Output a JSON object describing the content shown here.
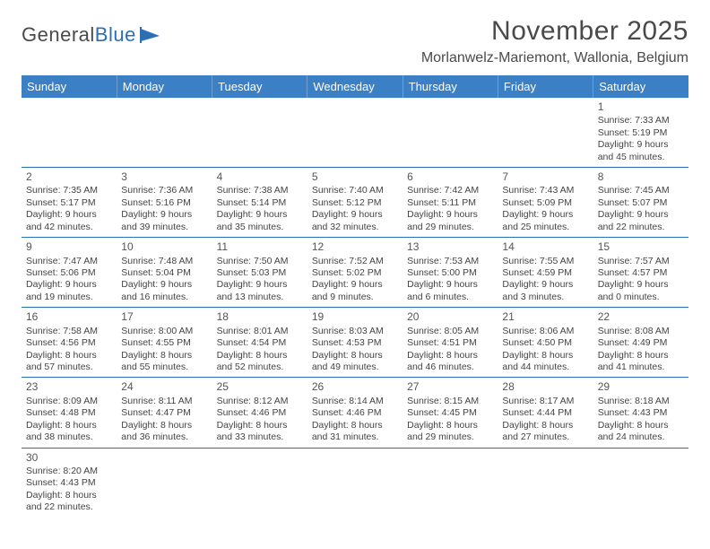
{
  "logo": {
    "word1": "General",
    "word2": "Blue"
  },
  "title": "November 2025",
  "location": "Morlanwelz-Mariemont, Wallonia, Belgium",
  "colors": {
    "header_bg": "#3b7fc4",
    "header_text": "#ffffff",
    "border": "#2d6fb5",
    "text": "#444444",
    "title": "#4a4a4a",
    "logo_accent": "#2d6fb5"
  },
  "day_headers": [
    "Sunday",
    "Monday",
    "Tuesday",
    "Wednesday",
    "Thursday",
    "Friday",
    "Saturday"
  ],
  "weeks": [
    [
      null,
      null,
      null,
      null,
      null,
      null,
      {
        "n": "1",
        "sr": "Sunrise: 7:33 AM",
        "ss": "Sunset: 5:19 PM",
        "dl": "Daylight: 9 hours and 45 minutes."
      }
    ],
    [
      {
        "n": "2",
        "sr": "Sunrise: 7:35 AM",
        "ss": "Sunset: 5:17 PM",
        "dl": "Daylight: 9 hours and 42 minutes."
      },
      {
        "n": "3",
        "sr": "Sunrise: 7:36 AM",
        "ss": "Sunset: 5:16 PM",
        "dl": "Daylight: 9 hours and 39 minutes."
      },
      {
        "n": "4",
        "sr": "Sunrise: 7:38 AM",
        "ss": "Sunset: 5:14 PM",
        "dl": "Daylight: 9 hours and 35 minutes."
      },
      {
        "n": "5",
        "sr": "Sunrise: 7:40 AM",
        "ss": "Sunset: 5:12 PM",
        "dl": "Daylight: 9 hours and 32 minutes."
      },
      {
        "n": "6",
        "sr": "Sunrise: 7:42 AM",
        "ss": "Sunset: 5:11 PM",
        "dl": "Daylight: 9 hours and 29 minutes."
      },
      {
        "n": "7",
        "sr": "Sunrise: 7:43 AM",
        "ss": "Sunset: 5:09 PM",
        "dl": "Daylight: 9 hours and 25 minutes."
      },
      {
        "n": "8",
        "sr": "Sunrise: 7:45 AM",
        "ss": "Sunset: 5:07 PM",
        "dl": "Daylight: 9 hours and 22 minutes."
      }
    ],
    [
      {
        "n": "9",
        "sr": "Sunrise: 7:47 AM",
        "ss": "Sunset: 5:06 PM",
        "dl": "Daylight: 9 hours and 19 minutes."
      },
      {
        "n": "10",
        "sr": "Sunrise: 7:48 AM",
        "ss": "Sunset: 5:04 PM",
        "dl": "Daylight: 9 hours and 16 minutes."
      },
      {
        "n": "11",
        "sr": "Sunrise: 7:50 AM",
        "ss": "Sunset: 5:03 PM",
        "dl": "Daylight: 9 hours and 13 minutes."
      },
      {
        "n": "12",
        "sr": "Sunrise: 7:52 AM",
        "ss": "Sunset: 5:02 PM",
        "dl": "Daylight: 9 hours and 9 minutes."
      },
      {
        "n": "13",
        "sr": "Sunrise: 7:53 AM",
        "ss": "Sunset: 5:00 PM",
        "dl": "Daylight: 9 hours and 6 minutes."
      },
      {
        "n": "14",
        "sr": "Sunrise: 7:55 AM",
        "ss": "Sunset: 4:59 PM",
        "dl": "Daylight: 9 hours and 3 minutes."
      },
      {
        "n": "15",
        "sr": "Sunrise: 7:57 AM",
        "ss": "Sunset: 4:57 PM",
        "dl": "Daylight: 9 hours and 0 minutes."
      }
    ],
    [
      {
        "n": "16",
        "sr": "Sunrise: 7:58 AM",
        "ss": "Sunset: 4:56 PM",
        "dl": "Daylight: 8 hours and 57 minutes."
      },
      {
        "n": "17",
        "sr": "Sunrise: 8:00 AM",
        "ss": "Sunset: 4:55 PM",
        "dl": "Daylight: 8 hours and 55 minutes."
      },
      {
        "n": "18",
        "sr": "Sunrise: 8:01 AM",
        "ss": "Sunset: 4:54 PM",
        "dl": "Daylight: 8 hours and 52 minutes."
      },
      {
        "n": "19",
        "sr": "Sunrise: 8:03 AM",
        "ss": "Sunset: 4:53 PM",
        "dl": "Daylight: 8 hours and 49 minutes."
      },
      {
        "n": "20",
        "sr": "Sunrise: 8:05 AM",
        "ss": "Sunset: 4:51 PM",
        "dl": "Daylight: 8 hours and 46 minutes."
      },
      {
        "n": "21",
        "sr": "Sunrise: 8:06 AM",
        "ss": "Sunset: 4:50 PM",
        "dl": "Daylight: 8 hours and 44 minutes."
      },
      {
        "n": "22",
        "sr": "Sunrise: 8:08 AM",
        "ss": "Sunset: 4:49 PM",
        "dl": "Daylight: 8 hours and 41 minutes."
      }
    ],
    [
      {
        "n": "23",
        "sr": "Sunrise: 8:09 AM",
        "ss": "Sunset: 4:48 PM",
        "dl": "Daylight: 8 hours and 38 minutes."
      },
      {
        "n": "24",
        "sr": "Sunrise: 8:11 AM",
        "ss": "Sunset: 4:47 PM",
        "dl": "Daylight: 8 hours and 36 minutes."
      },
      {
        "n": "25",
        "sr": "Sunrise: 8:12 AM",
        "ss": "Sunset: 4:46 PM",
        "dl": "Daylight: 8 hours and 33 minutes."
      },
      {
        "n": "26",
        "sr": "Sunrise: 8:14 AM",
        "ss": "Sunset: 4:46 PM",
        "dl": "Daylight: 8 hours and 31 minutes."
      },
      {
        "n": "27",
        "sr": "Sunrise: 8:15 AM",
        "ss": "Sunset: 4:45 PM",
        "dl": "Daylight: 8 hours and 29 minutes."
      },
      {
        "n": "28",
        "sr": "Sunrise: 8:17 AM",
        "ss": "Sunset: 4:44 PM",
        "dl": "Daylight: 8 hours and 27 minutes."
      },
      {
        "n": "29",
        "sr": "Sunrise: 8:18 AM",
        "ss": "Sunset: 4:43 PM",
        "dl": "Daylight: 8 hours and 24 minutes."
      }
    ],
    [
      {
        "n": "30",
        "sr": "Sunrise: 8:20 AM",
        "ss": "Sunset: 4:43 PM",
        "dl": "Daylight: 8 hours and 22 minutes."
      },
      null,
      null,
      null,
      null,
      null,
      null
    ]
  ]
}
